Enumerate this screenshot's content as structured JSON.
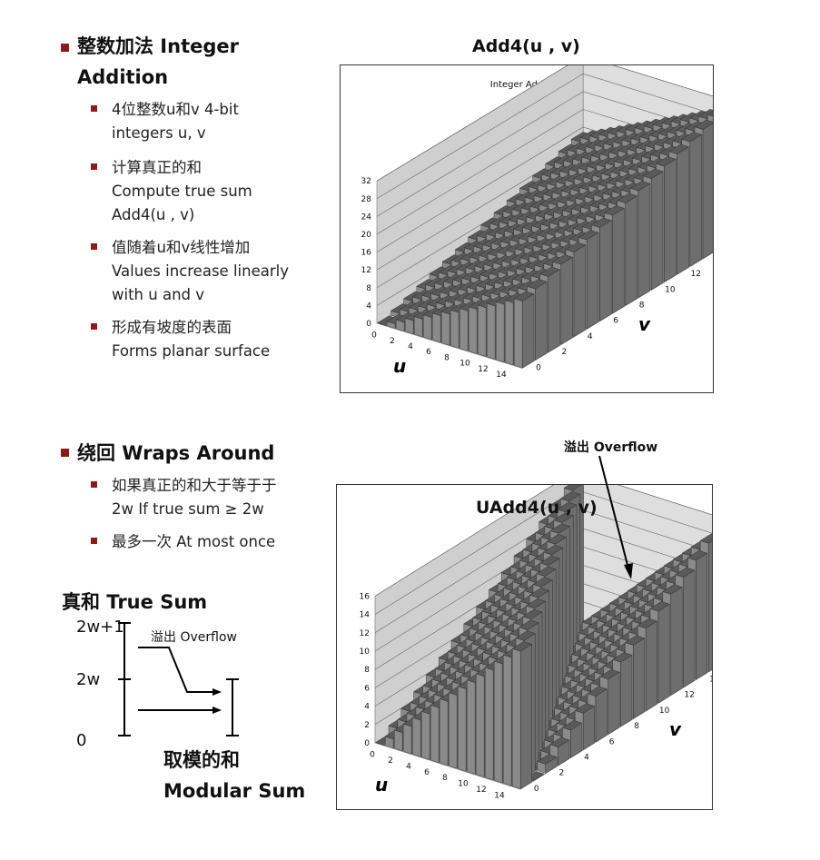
{
  "section1": {
    "heading_line1": "整数加法 Integer",
    "heading_line2": "Addition",
    "bullets": [
      {
        "line1": "4位整数u和v 4-bit",
        "line2": "integers u, v"
      },
      {
        "line1": "计算真正的和",
        "line2": "Compute true sum",
        "line3": "Add4(u , v)"
      },
      {
        "line1": "值随着u和v线性增加",
        "line2": "Values increase linearly",
        "line3": "with u and v"
      },
      {
        "line1": "形成有坡度的表面",
        "line2": "Forms planar surface"
      }
    ]
  },
  "section2": {
    "heading": "绕回 Wraps Around",
    "bullets": [
      {
        "line1": "如果真正的和大于等于于",
        "line2": "2w If true sum ≥ 2w"
      },
      {
        "line1": "最多一次 At most once"
      }
    ]
  },
  "diagram": {
    "true_sum_label": "真和 True Sum",
    "top_label": "2w+1",
    "mid_label": "2w",
    "zero_label": "0",
    "overflow_label": "溢出 Overflow",
    "modular_label_line1": "取模的和",
    "modular_label_line2": "Modular Sum"
  },
  "overflow_annotation": "溢出 Overflow",
  "colors": {
    "bullet": "#8b1a1a",
    "bar_face": "#8a8a8a",
    "bar_top": "#5a5a5a",
    "bar_side": "#6e6e6e",
    "wall": "#cfcfcf"
  },
  "chart_data": [
    {
      "type": "bar3d",
      "title": "Add4(u , v)",
      "inner_title": "Integer Addition",
      "x_name": "u",
      "y_name": "v",
      "x_ticks": [
        "0",
        "2",
        "4",
        "6",
        "8",
        "10",
        "12",
        "14"
      ],
      "y_ticks": [
        "0",
        "2",
        "4",
        "6",
        "8",
        "10",
        "12",
        "14"
      ],
      "z_ticks": [
        "0",
        "4",
        "8",
        "12",
        "16",
        "20",
        "24",
        "28",
        "32"
      ],
      "u_values": [
        0,
        1,
        2,
        3,
        4,
        5,
        6,
        7,
        8,
        9,
        10,
        11,
        12,
        13,
        14,
        15
      ],
      "v_values": [
        0,
        1,
        2,
        3,
        4,
        5,
        6,
        7,
        8,
        9,
        10,
        11,
        12,
        13,
        14,
        15
      ],
      "function": "u + v",
      "zlim": [
        0,
        32
      ]
    },
    {
      "type": "bar3d",
      "title": "UAdd4(u , v)",
      "x_name": "u",
      "y_name": "v",
      "x_ticks": [
        "0",
        "2",
        "4",
        "6",
        "8",
        "10",
        "12",
        "14"
      ],
      "y_ticks": [
        "0",
        "2",
        "4",
        "6",
        "8",
        "10",
        "12",
        "14"
      ],
      "z_ticks": [
        "0",
        "2",
        "4",
        "6",
        "8",
        "10",
        "12",
        "14",
        "16"
      ],
      "u_values": [
        0,
        1,
        2,
        3,
        4,
        5,
        6,
        7,
        8,
        9,
        10,
        11,
        12,
        13,
        14,
        15
      ],
      "v_values": [
        0,
        1,
        2,
        3,
        4,
        5,
        6,
        7,
        8,
        9,
        10,
        11,
        12,
        13,
        14,
        15
      ],
      "function": "(u + v) mod 16",
      "zlim": [
        0,
        16
      ]
    }
  ]
}
